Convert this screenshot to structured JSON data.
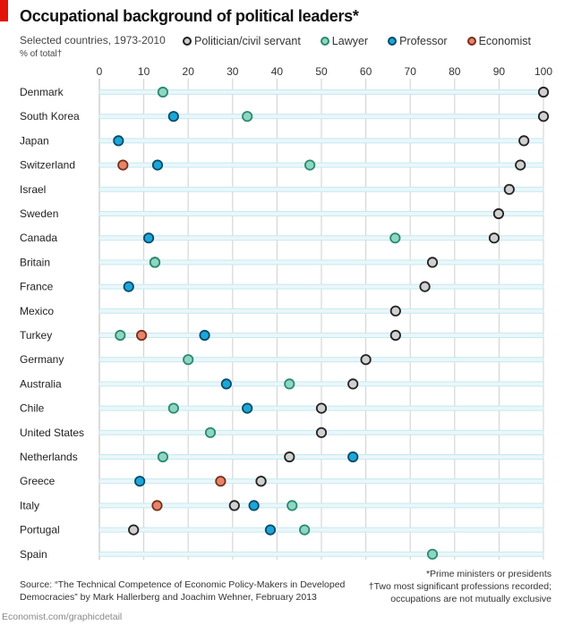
{
  "chart_data": {
    "type": "scatter",
    "title": "Occupational background of political leaders*",
    "subtitle": "Selected countries, 1973-2010",
    "unit_label": "% of total†",
    "xlim": [
      0,
      100
    ],
    "xticks": [
      "0",
      "10",
      "20",
      "30",
      "40",
      "50",
      "60",
      "70",
      "80",
      "90",
      "100"
    ],
    "grid": true,
    "legend_position": "top",
    "categories": [
      "Denmark",
      "South Korea",
      "Japan",
      "Switzerland",
      "Israel",
      "Sweden",
      "Canada",
      "Britain",
      "France",
      "Mexico",
      "Turkey",
      "Germany",
      "Australia",
      "Chile",
      "United States",
      "Netherlands",
      "Greece",
      "Italy",
      "Portugal",
      "Spain"
    ],
    "series": [
      {
        "name": "Politician/civil servant",
        "color": "#d0d0d0",
        "values": [
          100,
          100,
          95.6,
          94.8,
          92.3,
          89.9,
          88.9,
          75,
          73.3,
          66.7,
          66.7,
          60,
          57.1,
          50,
          50,
          42.8,
          36.4,
          30.4,
          7.7,
          null
        ]
      },
      {
        "name": "Lawyer",
        "color": "#8fd6c2",
        "values": [
          14.3,
          33.3,
          null,
          47.4,
          null,
          null,
          66.6,
          12.5,
          null,
          null,
          4.7,
          20,
          42.8,
          16.7,
          25,
          14.3,
          36.4,
          43.4,
          46.2,
          75
        ]
      },
      {
        "name": "Professor",
        "color": "#1ba7d8",
        "values": [
          null,
          16.7,
          4.3,
          13.1,
          null,
          null,
          11.1,
          12.5,
          6.6,
          null,
          23.7,
          null,
          28.6,
          33.3,
          null,
          57.1,
          9.1,
          34.8,
          38.5,
          null
        ]
      },
      {
        "name": "Economist",
        "color": "#e6856b",
        "values": [
          null,
          null,
          null,
          5.3,
          null,
          null,
          null,
          12.5,
          null,
          null,
          9.5,
          null,
          null,
          null,
          null,
          null,
          27.3,
          13,
          null,
          null
        ]
      }
    ]
  },
  "footnotes": {
    "source_line1": "Source: “The Technical Competence of Economic Policy-Makers in Developed",
    "source_line2": "Democracies” by Mark Hallerberg and Joachim Wehner, February 2013",
    "note1": "*Prime ministers or presidents",
    "note2": "†Two most significant professions recorded;",
    "note3": "occupations are not mutually exclusive"
  },
  "credit": "Economist.com/graphicdetail",
  "colors": {
    "accent": "#e3120b",
    "row_line": "#c6e8ef",
    "grid": "#cfcfcf"
  }
}
